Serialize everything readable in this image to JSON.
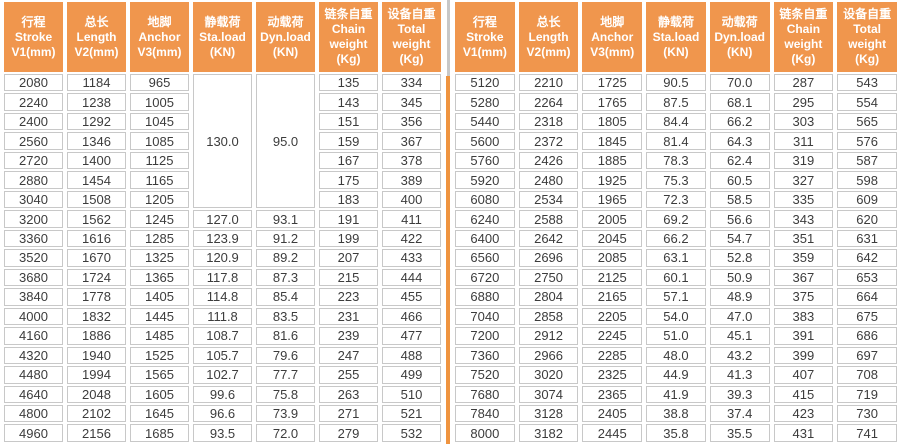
{
  "styles": {
    "header_bg": "#F0964D",
    "divider_orange": "#EF9440",
    "cell_border": "#C8C8C8",
    "data_text": "#3C3C3C"
  },
  "chart_data": {
    "type": "table",
    "title": "Stroke / load / weight specification table",
    "columns": [
      "行程\nStroke\nV1(mm)",
      "总长\nLength\nV2(mm)",
      "地脚\nAnchor\nV3(mm)",
      "静载荷\nSta.load\n(KN)",
      "动载荷\nDyn.load\n(KN)",
      "链条自重\nChain\nweight\n(Kg)",
      "设备自重\nTotal\nweight\n(Kg)"
    ],
    "left": {
      "merged": {
        "span": 7,
        "cells": {
          "3": "130.0",
          "4": "95.0"
        }
      },
      "rows": [
        [
          "2080",
          "1184",
          "965",
          null,
          null,
          "135",
          "334"
        ],
        [
          "2240",
          "1238",
          "1005",
          null,
          null,
          "143",
          "345"
        ],
        [
          "2400",
          "1292",
          "1045",
          null,
          null,
          "151",
          "356"
        ],
        [
          "2560",
          "1346",
          "1085",
          null,
          null,
          "159",
          "367"
        ],
        [
          "2720",
          "1400",
          "1125",
          null,
          null,
          "167",
          "378"
        ],
        [
          "2880",
          "1454",
          "1165",
          null,
          null,
          "175",
          "389"
        ],
        [
          "3040",
          "1508",
          "1205",
          null,
          null,
          "183",
          "400"
        ],
        [
          "3200",
          "1562",
          "1245",
          "127.0",
          "93.1",
          "191",
          "411"
        ],
        [
          "3360",
          "1616",
          "1285",
          "123.9",
          "91.2",
          "199",
          "422"
        ],
        [
          "3520",
          "1670",
          "1325",
          "120.9",
          "89.2",
          "207",
          "433"
        ],
        [
          "3680",
          "1724",
          "1365",
          "117.8",
          "87.3",
          "215",
          "444"
        ],
        [
          "3840",
          "1778",
          "1405",
          "114.8",
          "85.4",
          "223",
          "455"
        ],
        [
          "4000",
          "1832",
          "1445",
          "111.8",
          "83.5",
          "231",
          "466"
        ],
        [
          "4160",
          "1886",
          "1485",
          "108.7",
          "81.6",
          "239",
          "477"
        ],
        [
          "4320",
          "1940",
          "1525",
          "105.7",
          "79.6",
          "247",
          "488"
        ],
        [
          "4480",
          "1994",
          "1565",
          "102.7",
          "77.7",
          "255",
          "499"
        ],
        [
          "4640",
          "2048",
          "1605",
          "99.6",
          "75.8",
          "263",
          "510"
        ],
        [
          "4800",
          "2102",
          "1645",
          "96.6",
          "73.9",
          "271",
          "521"
        ],
        [
          "4960",
          "2156",
          "1685",
          "93.5",
          "72.0",
          "279",
          "532"
        ]
      ]
    },
    "right": {
      "rows": [
        [
          "5120",
          "2210",
          "1725",
          "90.5",
          "70.0",
          "287",
          "543"
        ],
        [
          "5280",
          "2264",
          "1765",
          "87.5",
          "68.1",
          "295",
          "554"
        ],
        [
          "5440",
          "2318",
          "1805",
          "84.4",
          "66.2",
          "303",
          "565"
        ],
        [
          "5600",
          "2372",
          "1845",
          "81.4",
          "64.3",
          "311",
          "576"
        ],
        [
          "5760",
          "2426",
          "1885",
          "78.3",
          "62.4",
          "319",
          "587"
        ],
        [
          "5920",
          "2480",
          "1925",
          "75.3",
          "60.5",
          "327",
          "598"
        ],
        [
          "6080",
          "2534",
          "1965",
          "72.3",
          "58.5",
          "335",
          "609"
        ],
        [
          "6240",
          "2588",
          "2005",
          "69.2",
          "56.6",
          "343",
          "620"
        ],
        [
          "6400",
          "2642",
          "2045",
          "66.2",
          "54.7",
          "351",
          "631"
        ],
        [
          "6560",
          "2696",
          "2085",
          "63.1",
          "52.8",
          "359",
          "642"
        ],
        [
          "6720",
          "2750",
          "2125",
          "60.1",
          "50.9",
          "367",
          "653"
        ],
        [
          "6880",
          "2804",
          "2165",
          "57.1",
          "48.9",
          "375",
          "664"
        ],
        [
          "7040",
          "2858",
          "2205",
          "54.0",
          "47.0",
          "383",
          "675"
        ],
        [
          "7200",
          "2912",
          "2245",
          "51.0",
          "45.1",
          "391",
          "686"
        ],
        [
          "7360",
          "2966",
          "2285",
          "48.0",
          "43.2",
          "399",
          "697"
        ],
        [
          "7520",
          "3020",
          "2325",
          "44.9",
          "41.3",
          "407",
          "708"
        ],
        [
          "7680",
          "3074",
          "2365",
          "41.9",
          "39.3",
          "415",
          "719"
        ],
        [
          "7840",
          "3128",
          "2405",
          "38.8",
          "37.4",
          "423",
          "730"
        ],
        [
          "8000",
          "3182",
          "2445",
          "35.8",
          "35.5",
          "431",
          "741"
        ]
      ]
    }
  }
}
